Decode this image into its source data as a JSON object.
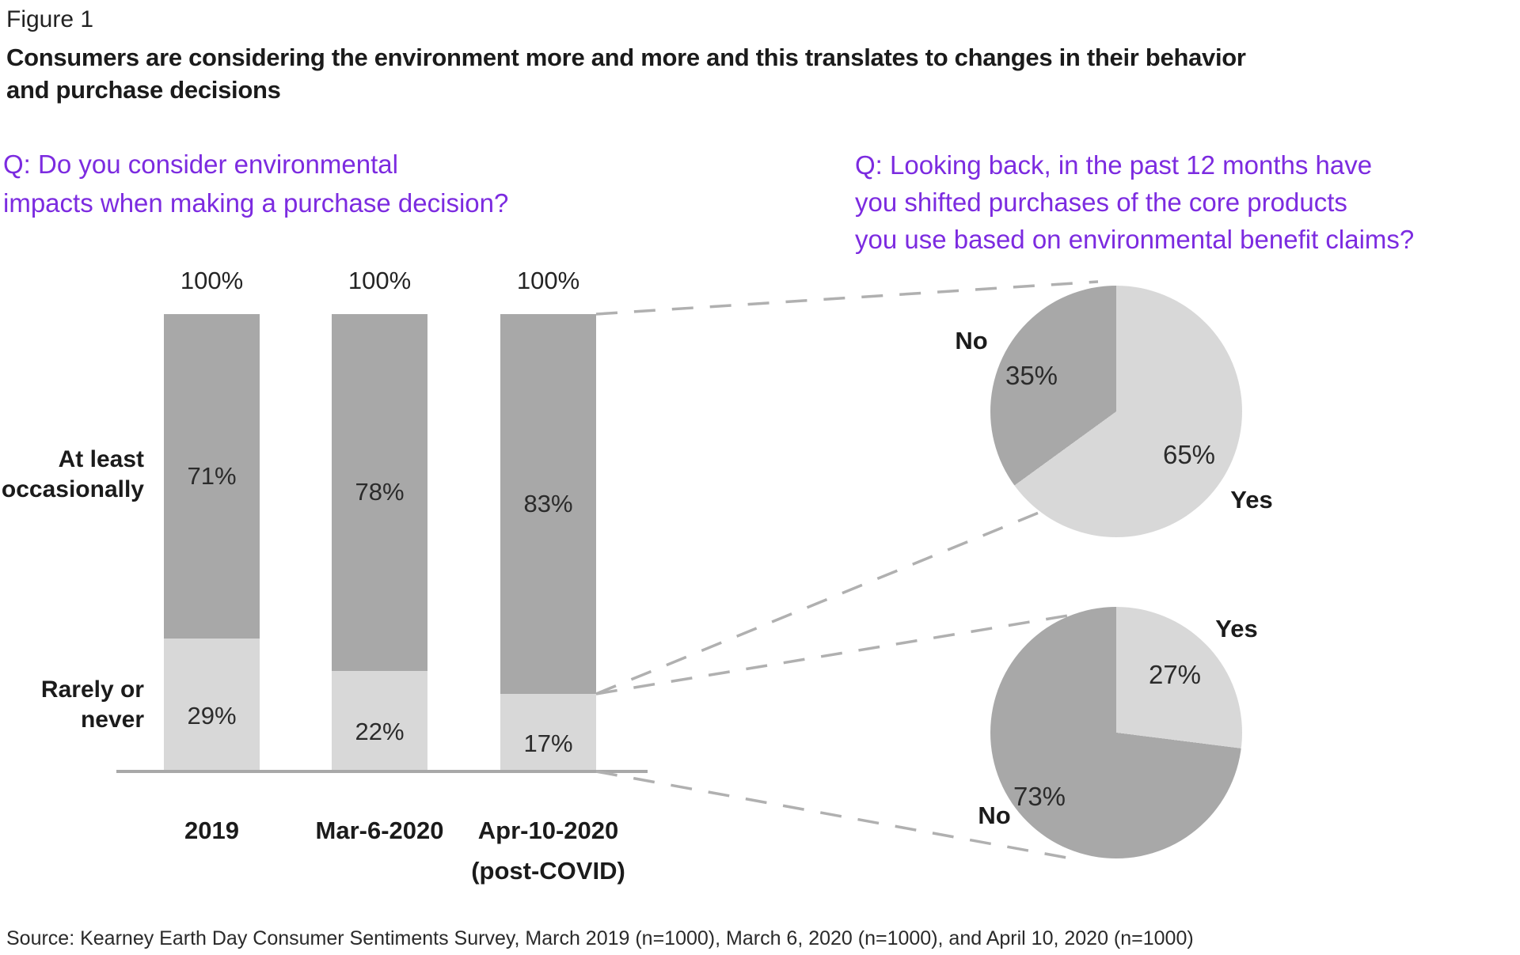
{
  "figure_label": "Figure 1",
  "title_lines": [
    "Consumers are considering the environment more and more and this translates to changes in their behavior",
    "and purchase decisions"
  ],
  "question_left": {
    "lines": [
      "Q: Do you consider environmental",
      "impacts when making a purchase decision?"
    ]
  },
  "question_right": {
    "lines": [
      "Q: Looking back, in the past 12 months have",
      "you shifted purchases of the core products",
      "you use based on environmental benefit claims?"
    ]
  },
  "source": "Source: Kearney Earth Day Consumer Sentiments Survey, March 2019 (n=1000), March 6, 2020 (n=1000), and April 10, 2020 (n=1000)",
  "colors": {
    "accent_purple": "#7c2be0",
    "dark_gray": "#a8a8a8",
    "light_gray": "#d8d8d8",
    "axis_gray": "#a8a8a8",
    "connector_gray": "#b0b0b0",
    "text_primary": "#1d1d1d",
    "value_text": "#2b2b2b"
  },
  "chart_data": [
    {
      "type": "bar",
      "subtype": "100%-stacked-column",
      "title": "Q: Do you consider environmental impacts when making a purchase decision?",
      "categories": [
        [
          "2019"
        ],
        [
          "Mar-6-2020"
        ],
        [
          "Apr-10-2020",
          "(post-COVID)"
        ]
      ],
      "series": [
        {
          "name": "At least occasionally",
          "name_lines": [
            "At least",
            "occasionally"
          ],
          "values": [
            71,
            78,
            83
          ],
          "labels": [
            "71%",
            "78%",
            "83%"
          ],
          "color": "#a8a8a8"
        },
        {
          "name": "Rarely or never",
          "name_lines": [
            "Rarely or",
            "never"
          ],
          "values": [
            29,
            22,
            17
          ],
          "labels": [
            "29%",
            "22%",
            "17%"
          ],
          "color": "#d8d8d8"
        }
      ],
      "totals": [
        "100%",
        "100%",
        "100%"
      ],
      "ylim": [
        0,
        100
      ],
      "grid": false,
      "legend": "none"
    },
    {
      "type": "pie",
      "position": "top",
      "title": "Q: Looking back, in the past 12 months have you shifted purchases of the core products you use based on environmental benefit claims?",
      "start_angle": 0,
      "direction": "clockwise",
      "slices": [
        {
          "label": "Yes",
          "value": 65,
          "value_label": "65%",
          "color": "#d8d8d8"
        },
        {
          "label": "No",
          "value": 35,
          "value_label": "35%",
          "color": "#a8a8a8"
        }
      ]
    },
    {
      "type": "pie",
      "position": "bottom",
      "start_angle": 0,
      "direction": "clockwise",
      "slices": [
        {
          "label": "Yes",
          "value": 27,
          "value_label": "27%",
          "color": "#d8d8d8"
        },
        {
          "label": "No",
          "value": 73,
          "value_label": "73%",
          "color": "#a8a8a8"
        }
      ]
    }
  ]
}
